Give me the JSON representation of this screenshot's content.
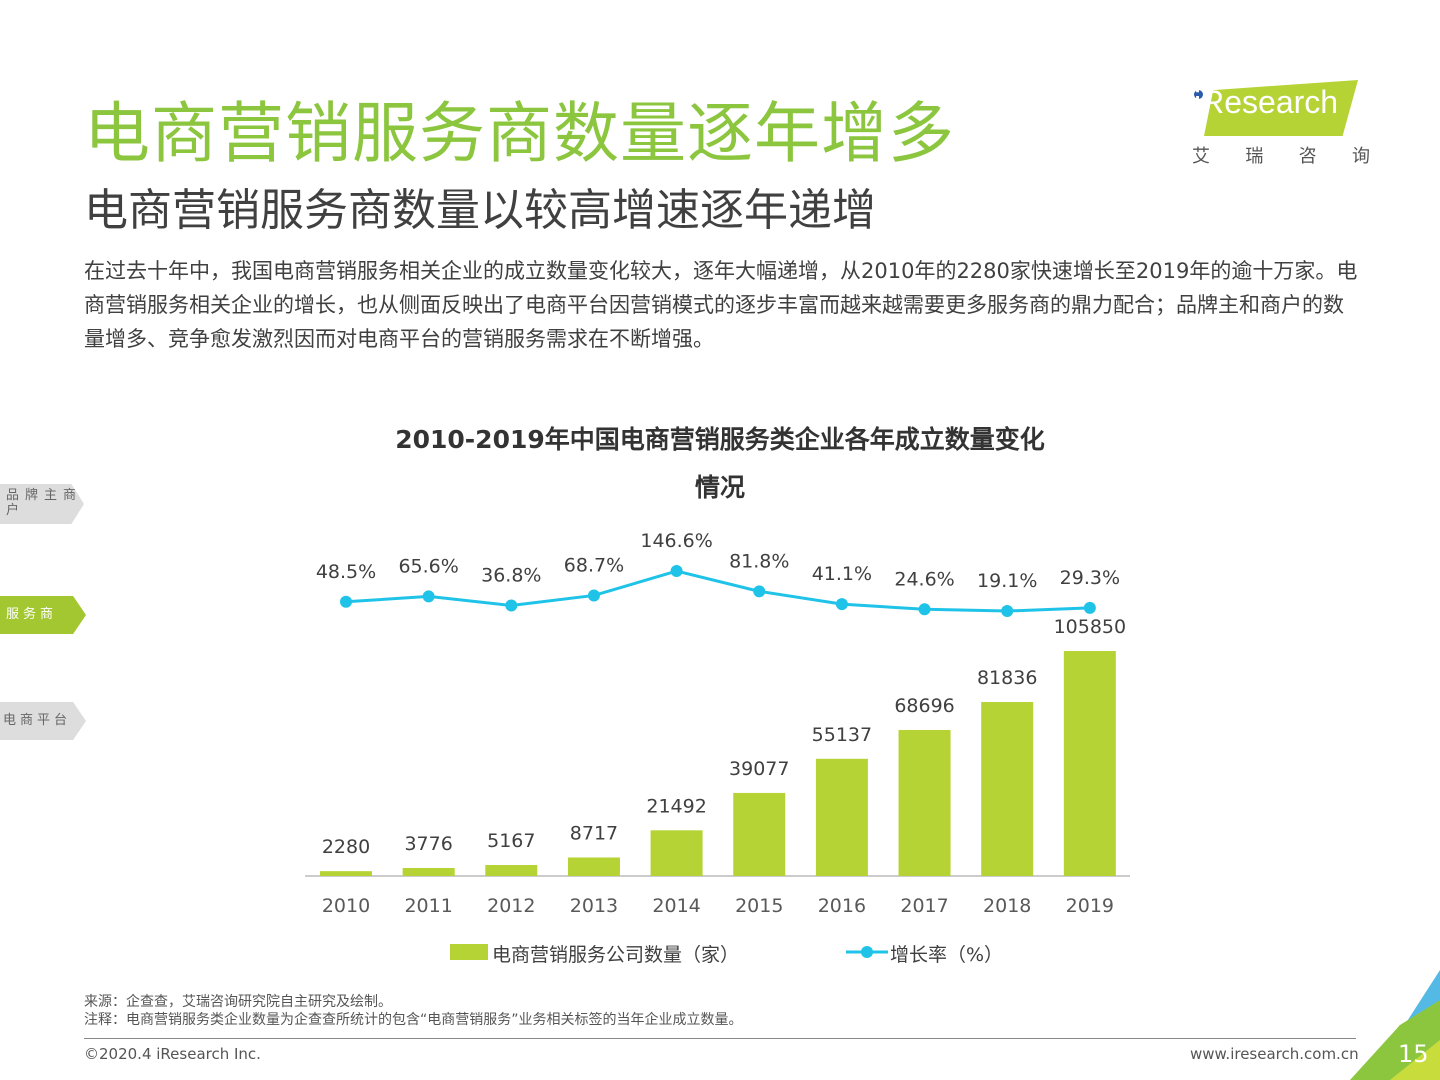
{
  "header": {
    "title": "电商营销服务商数量逐年增多",
    "subtitle": "电商营销服务商数量以较高增速逐年递增",
    "description": "在过去十年中，我国电商营销服务相关企业的成立数量变化较大，逐年大幅递增，从2010年的2280家快速增长至2019年的逾十万家。电商营销服务相关企业的增长，也从侧面反映出了电商平台因营销模式的逐步丰富而越来越需要更多服务商的鼎力配合；品牌主和商户的数量增多、竞争愈发激烈因而对电商平台的营销服务需求在不断增强。"
  },
  "logo": {
    "text": "iResearch",
    "cn": [
      "艾",
      "瑞",
      "咨",
      "询"
    ]
  },
  "side_nav": [
    {
      "label": "品牌主商户"
    },
    {
      "label": "服务商",
      "active": true
    },
    {
      "label": "电商平台"
    }
  ],
  "chart_data": {
    "type": "bar+line",
    "title_line1": "2010-2019年中国电商营销服务类企业各年成立数量变化",
    "title_line2": "情况",
    "categories": [
      "2010",
      "2011",
      "2012",
      "2013",
      "2014",
      "2015",
      "2016",
      "2017",
      "2018",
      "2019"
    ],
    "series": [
      {
        "name": "电商营销服务公司数量（家）",
        "type": "bar",
        "color": "#b5d334",
        "values": [
          2280,
          3776,
          5167,
          8717,
          21492,
          39077,
          55137,
          68696,
          81836,
          105850
        ]
      },
      {
        "name": "增长率（%）",
        "type": "line",
        "color": "#1fc3e8",
        "values": [
          48.5,
          65.6,
          36.8,
          68.7,
          146.6,
          81.8,
          41.1,
          24.6,
          19.1,
          29.3
        ],
        "labels": [
          "48.5%",
          "65.6%",
          "36.8%",
          "68.7%",
          "146.6%",
          "81.8%",
          "41.1%",
          "24.6%",
          "19.1%",
          "29.3%"
        ]
      }
    ],
    "legend_position": "bottom"
  },
  "footer": {
    "source": "来源：企查查，艾瑞咨询研究院自主研究及绘制。",
    "note": "注释：电商营销服务类企业数量为企查查所统计的包含“电商营销服务”业务相关标签的当年企业成立数量。",
    "copyright": "©2020.4 iResearch Inc.",
    "url": "www.iresearch.com.cn",
    "page": "15"
  }
}
